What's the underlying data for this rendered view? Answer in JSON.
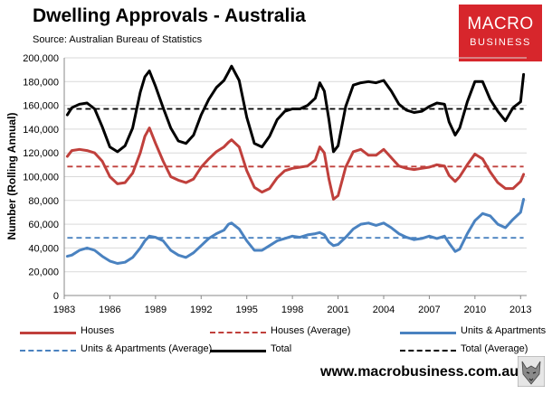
{
  "header": {
    "title": "Dwelling Approvals - Australia",
    "subtitle": "Source: Australian Bureau of Statistics"
  },
  "logo": {
    "line1": "MACRO",
    "line2": "BUSINESS",
    "bg_color": "#d7262c"
  },
  "footer": {
    "url": "www.macrobusiness.com.au",
    "icon": "wolf-icon"
  },
  "chart_data": {
    "type": "line",
    "title": "Dwelling Approvals - Australia",
    "xlabel": "",
    "ylabel": "Number (Rolling Annual)",
    "xlim": [
      1983,
      2013.4
    ],
    "ylim": [
      0,
      200000
    ],
    "xticks": [
      1983,
      1986,
      1989,
      1992,
      1995,
      1998,
      2001,
      2004,
      2007,
      2010,
      2013
    ],
    "yticks": [
      0,
      20000,
      40000,
      60000,
      80000,
      100000,
      120000,
      140000,
      160000,
      180000,
      200000
    ],
    "ytick_labels": [
      "0",
      "20,000",
      "40,000",
      "60,000",
      "80,000",
      "100,000",
      "120,000",
      "140,000",
      "160,000",
      "180,000",
      "200,000"
    ],
    "grid": "horizontal",
    "legend_position": "bottom",
    "series": [
      {
        "name": "Houses",
        "color": "#c0403c",
        "style": "solid",
        "x": [
          1983.2,
          1983.5,
          1984,
          1984.5,
          1985,
          1985.5,
          1986,
          1986.5,
          1987,
          1987.5,
          1988,
          1988.3,
          1988.6,
          1989,
          1989.5,
          1990,
          1990.5,
          1991,
          1991.5,
          1992,
          1992.5,
          1993,
          1993.5,
          1993.8,
          1994,
          1994.5,
          1995,
          1995.5,
          1996,
          1996.5,
          1997,
          1997.5,
          1998,
          1998.5,
          1999,
          1999.5,
          1999.8,
          2000.1,
          2000.4,
          2000.7,
          2001,
          2001.5,
          2002,
          2002.5,
          2003,
          2003.5,
          2004,
          2004.5,
          2005,
          2005.5,
          2006,
          2006.5,
          2007,
          2007.5,
          2008,
          2008.3,
          2008.7,
          2009,
          2009.5,
          2010,
          2010.5,
          2011,
          2011.5,
          2012,
          2012.5,
          2013,
          2013.2
        ],
        "values": [
          117000,
          122000,
          123000,
          122000,
          120000,
          113000,
          100000,
          94000,
          95000,
          103000,
          120000,
          134000,
          141000,
          128000,
          113000,
          100000,
          97000,
          95000,
          98000,
          108000,
          115000,
          121000,
          125000,
          129000,
          131000,
          125000,
          105000,
          91000,
          87000,
          90000,
          99000,
          105000,
          107000,
          108000,
          109000,
          114000,
          125000,
          120000,
          98000,
          81000,
          84000,
          108000,
          121000,
          123000,
          118000,
          118000,
          123000,
          116000,
          109000,
          107000,
          106000,
          107000,
          108000,
          110000,
          109000,
          101000,
          96000,
          100000,
          110000,
          119000,
          115000,
          104000,
          95000,
          90000,
          90000,
          96000,
          102000
        ]
      },
      {
        "name": "Houses (Average)",
        "color": "#c0403c",
        "style": "dashed",
        "x": [
          1983.2,
          2013.2
        ],
        "values": [
          108500,
          108500
        ]
      },
      {
        "name": "Units & Apartments",
        "color": "#4a82c0",
        "style": "solid",
        "x": [
          1983.2,
          1983.5,
          1984,
          1984.5,
          1985,
          1985.5,
          1986,
          1986.5,
          1987,
          1987.5,
          1988,
          1988.3,
          1988.6,
          1989,
          1989.5,
          1990,
          1990.5,
          1991,
          1991.5,
          1992,
          1992.5,
          1993,
          1993.5,
          1993.8,
          1994,
          1994.5,
          1995,
          1995.5,
          1996,
          1996.5,
          1997,
          1997.5,
          1998,
          1998.5,
          1999,
          1999.5,
          1999.8,
          2000.1,
          2000.4,
          2000.7,
          2001,
          2001.5,
          2002,
          2002.5,
          2003,
          2003.5,
          2004,
          2004.5,
          2005,
          2005.5,
          2006,
          2006.5,
          2007,
          2007.5,
          2008,
          2008.3,
          2008.7,
          2009,
          2009.5,
          2010,
          2010.5,
          2011,
          2011.5,
          2012,
          2012.5,
          2013,
          2013.2
        ],
        "values": [
          33000,
          34000,
          38000,
          40000,
          38000,
          33000,
          29000,
          27000,
          28000,
          32000,
          40000,
          46000,
          50000,
          49000,
          46000,
          38000,
          34000,
          32000,
          36000,
          42000,
          48000,
          52000,
          55000,
          60000,
          61000,
          56000,
          46000,
          38000,
          38000,
          42000,
          46000,
          48000,
          50000,
          49000,
          51000,
          52000,
          53000,
          51000,
          45000,
          42000,
          43000,
          49000,
          56000,
          60000,
          61000,
          59000,
          61000,
          57000,
          52000,
          49000,
          47000,
          48000,
          50000,
          48000,
          50000,
          44000,
          37000,
          39000,
          52000,
          63000,
          69000,
          67000,
          60000,
          57000,
          64000,
          70000,
          81000
        ]
      },
      {
        "name": "Units & Apartments (Average)",
        "color": "#4a82c0",
        "style": "dashed",
        "x": [
          1983.2,
          2013.2
        ],
        "values": [
          48500,
          48500
        ]
      },
      {
        "name": "Total",
        "color": "#000000",
        "style": "solid",
        "x": [
          1983.2,
          1983.5,
          1984,
          1984.5,
          1985,
          1985.5,
          1986,
          1986.5,
          1987,
          1987.5,
          1988,
          1988.3,
          1988.6,
          1989,
          1989.5,
          1990,
          1990.5,
          1991,
          1991.5,
          1992,
          1992.5,
          1993,
          1993.5,
          1993.8,
          1994,
          1994.5,
          1995,
          1995.5,
          1996,
          1996.5,
          1997,
          1997.5,
          1998,
          1998.5,
          1999,
          1999.5,
          1999.8,
          2000.1,
          2000.4,
          2000.7,
          2001,
          2001.5,
          2002,
          2002.5,
          2003,
          2003.5,
          2004,
          2004.5,
          2005,
          2005.5,
          2006,
          2006.5,
          2007,
          2007.5,
          2008,
          2008.3,
          2008.7,
          2009,
          2009.5,
          2010,
          2010.5,
          2011,
          2011.5,
          2012,
          2012.5,
          2013,
          2013.2
        ],
        "values": [
          152000,
          158000,
          161000,
          162000,
          157000,
          142000,
          125000,
          121000,
          126000,
          141000,
          171000,
          184000,
          189000,
          176000,
          158000,
          141000,
          130000,
          128000,
          135000,
          152000,
          165000,
          175000,
          181000,
          188000,
          193000,
          181000,
          150000,
          128000,
          125000,
          134000,
          148000,
          155000,
          157000,
          157000,
          160000,
          166000,
          179000,
          172000,
          148000,
          121000,
          126000,
          159000,
          177000,
          179000,
          180000,
          179000,
          181000,
          172000,
          161000,
          156000,
          154000,
          155000,
          159000,
          162000,
          161000,
          146000,
          135000,
          141000,
          163000,
          180000,
          180000,
          165000,
          155000,
          147000,
          158000,
          163000,
          186000
        ]
      },
      {
        "name": "Total (Average)",
        "color": "#000000",
        "style": "dashed",
        "x": [
          1983.2,
          2013.2
        ],
        "values": [
          157000,
          157000
        ]
      }
    ]
  }
}
